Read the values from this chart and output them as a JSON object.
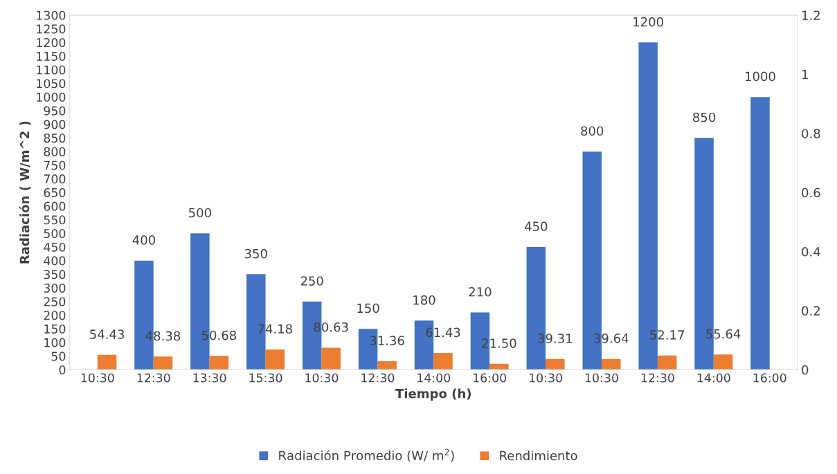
{
  "chart_data": {
    "type": "bar",
    "xlabel": "Tiempo (h)",
    "ylabel": "Radiación ( W/m^2 )",
    "categories": [
      "10:30",
      "12:30",
      "13:30",
      "15:30",
      "10:30",
      "12:30",
      "14:00",
      "16:00",
      "10:30",
      "10:30",
      "12:30",
      "14:00",
      "16:00"
    ],
    "series": [
      {
        "name": "Radiación Promedio (W/ m$^{2}$)",
        "color": "#4472c4",
        "values": [
          null,
          400,
          500,
          350,
          250,
          150,
          180,
          210,
          450,
          800,
          1200,
          850,
          1000
        ],
        "value_labels": [
          null,
          "400",
          "500",
          "350",
          "250",
          "150",
          "180",
          "210",
          "450",
          "800",
          "1200",
          "850",
          "1000"
        ]
      },
      {
        "name": "Rendimiento",
        "color": "#ed7d31",
        "values": [
          54.43,
          48.38,
          50.68,
          74.18,
          80.63,
          31.36,
          61.43,
          21.5,
          39.31,
          39.64,
          52.17,
          55.64,
          null
        ],
        "value_labels": [
          "54.43",
          "48.38",
          "50.68",
          "74.18",
          "80.63",
          "31.36",
          "61.43",
          "21.50",
          "39.31",
          "39.64",
          "52.17",
          "55.64",
          null
        ]
      }
    ],
    "ylim": [
      0,
      1300
    ],
    "yticks": [
      0,
      50,
      100,
      150,
      200,
      250,
      300,
      350,
      400,
      450,
      500,
      550,
      600,
      650,
      700,
      750,
      800,
      850,
      900,
      950,
      1000,
      1050,
      1100,
      1150,
      1200,
      1250,
      1300
    ],
    "y2lim": [
      0,
      1.2
    ],
    "y2ticks": [
      0,
      {
        "value": 0.2,
        "label": "0.2"
      },
      {
        "value": 0.4,
        "label": "0.4"
      },
      {
        "value": 0.6,
        "label": "0.6"
      },
      {
        "value": 0.8,
        "label": "0.8"
      },
      1,
      {
        "value": 1.2,
        "label": "1.2"
      }
    ],
    "legend": "bottom",
    "grid": false
  }
}
